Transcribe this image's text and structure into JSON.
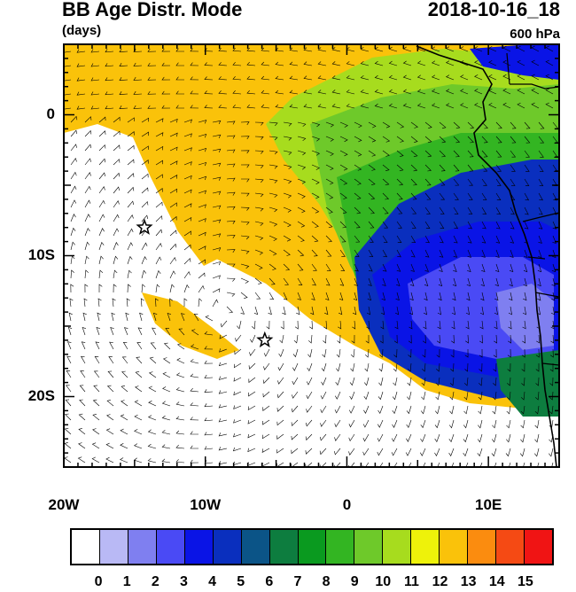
{
  "header": {
    "title": "BB Age Distr. Mode",
    "units": "(days)",
    "datetime": "2018-10-16_18",
    "level": "600 hPa"
  },
  "map": {
    "lon_range": [
      -20,
      15
    ],
    "lat_range": [
      -25,
      5
    ],
    "lon_ticks": [
      {
        "value": -20,
        "label": "20W"
      },
      {
        "value": -10,
        "label": "10W"
      },
      {
        "value": 0,
        "label": "0"
      },
      {
        "value": 10,
        "label": "10E"
      }
    ],
    "lat_ticks": [
      {
        "value": 0,
        "label": "0"
      },
      {
        "value": -10,
        "label": "10S"
      },
      {
        "value": -20,
        "label": "20S"
      }
    ],
    "stars": [
      {
        "lon": -14.3,
        "lat": -8.0
      },
      {
        "lon": -5.8,
        "lat": -16.0
      }
    ]
  },
  "colorbar": {
    "labels": [
      "0",
      "1",
      "2",
      "3",
      "4",
      "5",
      "6",
      "7",
      "8",
      "9",
      "10",
      "11",
      "12",
      "13",
      "14",
      "15"
    ],
    "colors": [
      "#ffffff",
      "#b9b9f5",
      "#7f7ff0",
      "#4a4af5",
      "#0a14e6",
      "#0a2fbe",
      "#0b5487",
      "#0d7d3f",
      "#0a9a1f",
      "#33b522",
      "#6ec92a",
      "#a7dc1e",
      "#eef20a",
      "#fac20a",
      "#fb8c0f",
      "#f54a14",
      "#f01414"
    ]
  }
}
